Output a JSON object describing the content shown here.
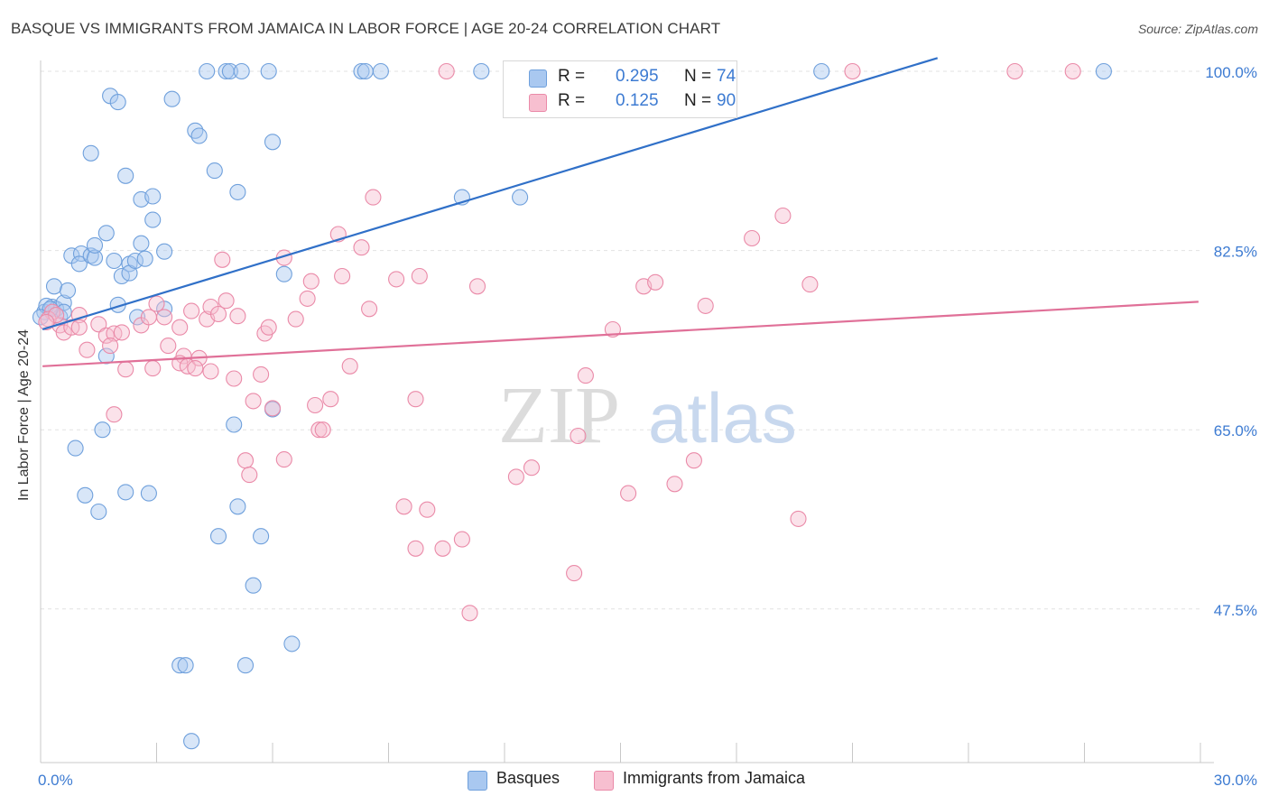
{
  "title": "BASQUE VS IMMIGRANTS FROM JAMAICA IN LABOR FORCE | AGE 20-24 CORRELATION CHART",
  "source": "Source: ZipAtlas.com",
  "watermark": {
    "zip": "ZIP",
    "atlas": "atlas"
  },
  "legend": {
    "r_label": "R =",
    "n_label": "N =",
    "series": [
      {
        "r": "0.295",
        "n": "74",
        "color": "#a9c8f0",
        "stroke": "#6fa0dc"
      },
      {
        "r": "0.125",
        "n": "90",
        "color": "#f7bfd0",
        "stroke": "#ea8aa8"
      }
    ]
  },
  "bottom_legend": [
    "Basques",
    "Immigrants from Jamaica"
  ],
  "chart_data": {
    "type": "scatter",
    "title": "BASQUE VS IMMIGRANTS FROM JAMAICA IN LABOR FORCE | AGE 20-24 CORRELATION CHART",
    "xlabel": "",
    "ylabel": "In Labor Force | Age 20-24",
    "xlim": [
      0,
      30
    ],
    "ylim": [
      32.5,
      101.5
    ],
    "x_tick_labels": [
      "0.0%",
      "30.0%"
    ],
    "y_ticks": [
      47.5,
      65.0,
      82.5,
      100.0
    ],
    "y_tick_labels": [
      "47.5%",
      "65.0%",
      "82.5%",
      "100.0%"
    ],
    "grid": true,
    "legend_position": "top-center",
    "series": [
      {
        "name": "Basques",
        "color": "#6fa0dc",
        "fill": "#a9c8f0",
        "trend": {
          "x": [
            0.05,
            23.2
          ],
          "y": [
            74.8,
            101.3
          ],
          "color": "#3070c8"
        },
        "points": [
          [
            0.1,
            76.5
          ],
          [
            0.3,
            77.0
          ],
          [
            0.4,
            76.8
          ],
          [
            0.6,
            77.4
          ],
          [
            0.5,
            76.0
          ],
          [
            0.35,
            79.0
          ],
          [
            0.7,
            78.6
          ],
          [
            0.6,
            76.5
          ],
          [
            0.8,
            82.0
          ],
          [
            1.05,
            82.2
          ],
          [
            1.0,
            81.2
          ],
          [
            1.3,
            82.0
          ],
          [
            1.4,
            81.8
          ],
          [
            1.4,
            83.0
          ],
          [
            1.7,
            84.2
          ],
          [
            1.9,
            81.5
          ],
          [
            2.1,
            80.0
          ],
          [
            2.3,
            81.2
          ],
          [
            2.3,
            80.3
          ],
          [
            2.45,
            81.5
          ],
          [
            2.6,
            83.2
          ],
          [
            2.7,
            81.7
          ],
          [
            3.2,
            82.4
          ],
          [
            2.0,
            77.2
          ],
          [
            2.5,
            76.0
          ],
          [
            3.2,
            76.8
          ],
          [
            1.3,
            92.0
          ],
          [
            1.8,
            97.6
          ],
          [
            2.0,
            97.0
          ],
          [
            2.2,
            89.8
          ],
          [
            2.6,
            87.5
          ],
          [
            2.9,
            87.8
          ],
          [
            2.9,
            85.5
          ],
          [
            3.4,
            97.3
          ],
          [
            4.0,
            94.2
          ],
          [
            4.1,
            93.7
          ],
          [
            4.5,
            90.3
          ],
          [
            5.1,
            88.2
          ],
          [
            4.3,
            100.0
          ],
          [
            4.8,
            100.0
          ],
          [
            4.9,
            100.0
          ],
          [
            5.2,
            100.0
          ],
          [
            5.9,
            100.0
          ],
          [
            8.3,
            100.0
          ],
          [
            8.4,
            100.0
          ],
          [
            8.8,
            100.0
          ],
          [
            11.4,
            100.0
          ],
          [
            20.2,
            100.0
          ],
          [
            27.5,
            100.0
          ],
          [
            6.0,
            93.1
          ],
          [
            6.3,
            80.2
          ],
          [
            10.9,
            87.7
          ],
          [
            12.4,
            87.7
          ],
          [
            1.7,
            72.2
          ],
          [
            1.6,
            65.0
          ],
          [
            0.9,
            63.2
          ],
          [
            1.15,
            58.6
          ],
          [
            1.5,
            57.0
          ],
          [
            2.2,
            58.9
          ],
          [
            2.8,
            58.8
          ],
          [
            5.0,
            65.5
          ],
          [
            5.1,
            57.5
          ],
          [
            4.6,
            54.6
          ],
          [
            5.7,
            54.6
          ],
          [
            5.5,
            49.8
          ],
          [
            6.5,
            44.1
          ],
          [
            3.6,
            42.0
          ],
          [
            3.75,
            42.0
          ],
          [
            5.3,
            42.0
          ],
          [
            3.9,
            34.6
          ],
          [
            6.0,
            67.0
          ],
          [
            0.15,
            77.1
          ],
          [
            0.25,
            76.8
          ],
          [
            0.0,
            76.0
          ]
        ]
      },
      {
        "name": "Immigrants from Jamaica",
        "color": "#ea8aa8",
        "fill": "#f7bfd0",
        "trend": {
          "x": [
            0.05,
            29.95
          ],
          "y": [
            71.2,
            77.5
          ],
          "color": "#e07098"
        },
        "points": [
          [
            0.3,
            76.5
          ],
          [
            0.5,
            75.2
          ],
          [
            0.6,
            74.5
          ],
          [
            0.8,
            75.0
          ],
          [
            1.0,
            76.2
          ],
          [
            1.0,
            75.0
          ],
          [
            1.5,
            75.3
          ],
          [
            1.7,
            74.2
          ],
          [
            1.9,
            74.4
          ],
          [
            1.8,
            73.2
          ],
          [
            1.2,
            72.8
          ],
          [
            2.1,
            74.5
          ],
          [
            2.6,
            75.2
          ],
          [
            2.8,
            76.0
          ],
          [
            3.0,
            77.3
          ],
          [
            3.2,
            76.0
          ],
          [
            3.6,
            75.0
          ],
          [
            3.9,
            76.6
          ],
          [
            4.3,
            75.8
          ],
          [
            4.4,
            77.0
          ],
          [
            4.6,
            76.3
          ],
          [
            4.8,
            77.6
          ],
          [
            5.1,
            76.1
          ],
          [
            5.8,
            74.4
          ],
          [
            5.9,
            75.0
          ],
          [
            3.3,
            73.2
          ],
          [
            3.7,
            72.2
          ],
          [
            3.6,
            71.5
          ],
          [
            3.8,
            71.2
          ],
          [
            4.1,
            72.0
          ],
          [
            4.0,
            71.0
          ],
          [
            4.4,
            70.7
          ],
          [
            2.2,
            70.9
          ],
          [
            2.9,
            71.0
          ],
          [
            5.0,
            70.0
          ],
          [
            5.7,
            70.4
          ],
          [
            6.6,
            75.8
          ],
          [
            6.9,
            77.8
          ],
          [
            7.0,
            79.5
          ],
          [
            7.8,
            80.0
          ],
          [
            8.0,
            71.2
          ],
          [
            8.5,
            76.8
          ],
          [
            9.2,
            79.7
          ],
          [
            9.8,
            80.0
          ],
          [
            11.3,
            79.0
          ],
          [
            6.3,
            81.8
          ],
          [
            4.7,
            81.6
          ],
          [
            7.7,
            84.1
          ],
          [
            8.3,
            82.8
          ],
          [
            8.6,
            87.7
          ],
          [
            9.7,
            68.0
          ],
          [
            7.5,
            68.0
          ],
          [
            7.1,
            67.4
          ],
          [
            7.2,
            65.0
          ],
          [
            7.3,
            65.0
          ],
          [
            5.5,
            67.8
          ],
          [
            6.0,
            67.1
          ],
          [
            5.3,
            62.0
          ],
          [
            5.4,
            60.6
          ],
          [
            6.3,
            62.1
          ],
          [
            1.9,
            66.5
          ],
          [
            9.4,
            57.5
          ],
          [
            10.0,
            57.2
          ],
          [
            9.7,
            53.4
          ],
          [
            10.4,
            53.4
          ],
          [
            10.9,
            54.3
          ],
          [
            11.1,
            47.1
          ],
          [
            12.3,
            60.4
          ],
          [
            12.7,
            61.3
          ],
          [
            13.9,
            64.4
          ],
          [
            14.1,
            70.3
          ],
          [
            13.8,
            51.0
          ],
          [
            14.8,
            74.8
          ],
          [
            15.2,
            58.8
          ],
          [
            15.6,
            79.0
          ],
          [
            15.9,
            79.4
          ],
          [
            16.4,
            59.7
          ],
          [
            16.9,
            62.0
          ],
          [
            17.2,
            77.1
          ],
          [
            18.4,
            83.7
          ],
          [
            19.2,
            85.9
          ],
          [
            19.6,
            56.3
          ],
          [
            19.9,
            79.2
          ],
          [
            21.0,
            100.0
          ],
          [
            25.2,
            100.0
          ],
          [
            26.7,
            100.0
          ],
          [
            10.5,
            100.0
          ],
          [
            0.2,
            75.8
          ],
          [
            0.4,
            76.2
          ],
          [
            0.15,
            75.5
          ]
        ]
      }
    ]
  }
}
